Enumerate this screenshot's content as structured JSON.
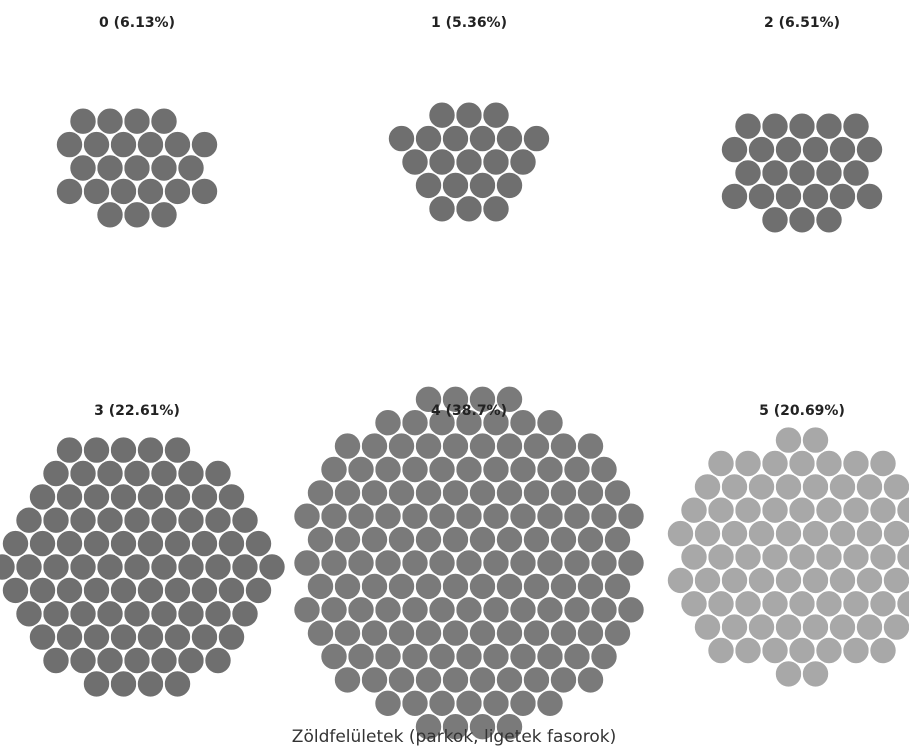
{
  "chart_data": {
    "type": "bubble-cluster",
    "title": "Zöldfelületek (parkok, ligetek fasorok)",
    "clusters": [
      {
        "id": "0",
        "share": 6.13,
        "label": "0 (6.13%)",
        "color": "#6f6f6f"
      },
      {
        "id": "1",
        "share": 5.36,
        "label": "1 (5.36%)",
        "color": "#6f6f6f"
      },
      {
        "id": "2",
        "share": 6.51,
        "label": "2 (6.51%)",
        "color": "#6f6f6f"
      },
      {
        "id": "3",
        "share": 22.61,
        "label": "3 (22.61%)",
        "color": "#6f6f6f"
      },
      {
        "id": "4",
        "share": 38.7,
        "label": "4 (38.7%)",
        "color": "#7a7a7a"
      },
      {
        "id": "5",
        "share": 20.69,
        "label": "5 (20.69%)",
        "color": "#a8a8a8"
      }
    ]
  }
}
